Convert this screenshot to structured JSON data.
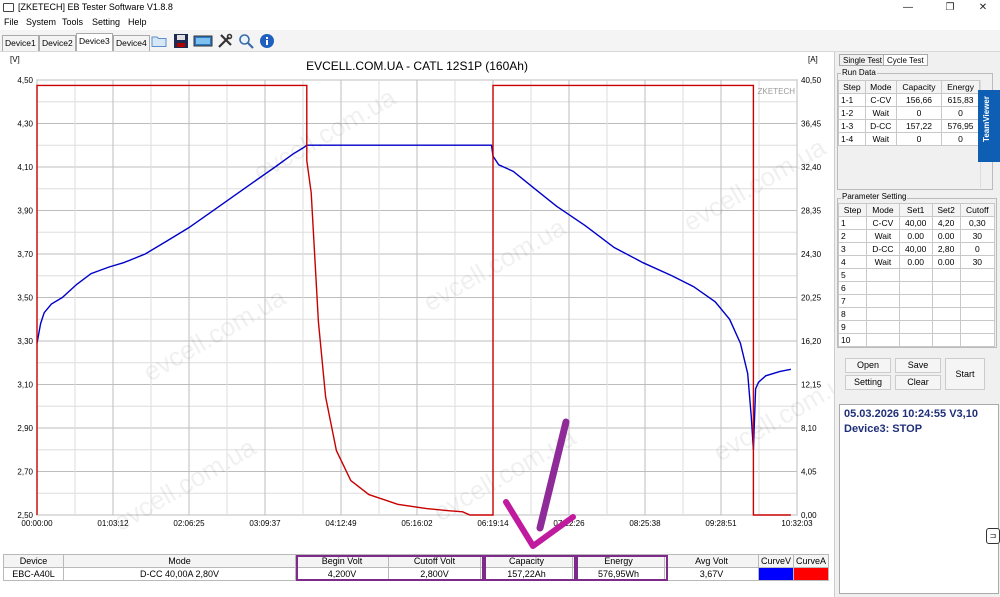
{
  "window": {
    "title": "[ZKETECH] EB Tester Software V1.8.8",
    "minimize_glyph": "—",
    "maximize_glyph": "❐",
    "close_glyph": "✕"
  },
  "menu": [
    "File",
    "System",
    "Tools",
    "Setting",
    "Help"
  ],
  "devices": [
    "Device1",
    "Device2",
    "Device3",
    "Device4"
  ],
  "active_device": "Device3",
  "toolbar_icons": [
    "folder-icon",
    "save-icon",
    "monitor-icon",
    "tools-icon",
    "search-icon",
    "info-icon"
  ],
  "chart_data": {
    "type": "line",
    "title": "EVCELL.COM.UA - CATL 12S1P (160Ah)",
    "y_left_unit": "[V]",
    "y_right_unit": "[A]",
    "y_left_ticks": [
      "4,50",
      "4,30",
      "4,10",
      "3,90",
      "3,70",
      "3,50",
      "3,30",
      "3,10",
      "2,90",
      "2,70",
      "2,50"
    ],
    "y_right_ticks": [
      "40,50",
      "36,45",
      "32,40",
      "28,35",
      "24,30",
      "20,25",
      "16,20",
      "12,15",
      "8,10",
      "4,05",
      "0,00"
    ],
    "x_ticks": [
      "00:00:00",
      "01:03:12",
      "02:06:25",
      "03:09:37",
      "04:12:49",
      "05:16:02",
      "06:19:14",
      "07:22:26",
      "08:25:38",
      "09:28:51",
      "10:32:03"
    ],
    "ylim_left": [
      2.5,
      4.5
    ],
    "ylim_right": [
      0,
      40.5
    ],
    "xlim_hours": [
      0,
      10.534
    ],
    "grid": true,
    "watermark_text": "ZKETECH",
    "watermark_site": "evcell.com.ua",
    "series": [
      {
        "name": "CurveV",
        "axis": "left",
        "color": "#0000c8",
        "points": [
          [
            0.0,
            3.29
          ],
          [
            0.05,
            3.38
          ],
          [
            0.1,
            3.43
          ],
          [
            0.2,
            3.47
          ],
          [
            0.35,
            3.5
          ],
          [
            0.55,
            3.56
          ],
          [
            0.75,
            3.61
          ],
          [
            1.0,
            3.64
          ],
          [
            1.2,
            3.66
          ],
          [
            1.5,
            3.7
          ],
          [
            1.8,
            3.76
          ],
          [
            2.1,
            3.82
          ],
          [
            2.4,
            3.89
          ],
          [
            2.7,
            3.96
          ],
          [
            3.0,
            4.03
          ],
          [
            3.3,
            4.1
          ],
          [
            3.55,
            4.16
          ],
          [
            3.7,
            4.19
          ],
          [
            3.74,
            4.2
          ],
          [
            4.5,
            4.2
          ],
          [
            5.5,
            4.2
          ],
          [
            6.3,
            4.2
          ],
          [
            6.32,
            4.15
          ],
          [
            6.4,
            4.11
          ],
          [
            6.6,
            4.08
          ],
          [
            6.9,
            4.0
          ],
          [
            7.2,
            3.92
          ],
          [
            7.6,
            3.83
          ],
          [
            8.0,
            3.73
          ],
          [
            8.4,
            3.66
          ],
          [
            8.8,
            3.6
          ],
          [
            9.1,
            3.55
          ],
          [
            9.4,
            3.48
          ],
          [
            9.6,
            3.4
          ],
          [
            9.75,
            3.29
          ],
          [
            9.85,
            3.15
          ],
          [
            9.9,
            2.95
          ],
          [
            9.93,
            2.8
          ],
          [
            9.96,
            3.08
          ],
          [
            10.0,
            3.11
          ],
          [
            10.1,
            3.14
          ],
          [
            10.3,
            3.16
          ],
          [
            10.45,
            3.17
          ]
        ]
      },
      {
        "name": "CurveA",
        "axis": "right",
        "color": "#c80000",
        "points": [
          [
            0.0,
            0.0
          ],
          [
            0.0,
            40.0
          ],
          [
            3.74,
            40.0
          ],
          [
            3.74,
            33.0
          ],
          [
            3.8,
            30.0
          ],
          [
            3.85,
            24.0
          ],
          [
            3.9,
            18.0
          ],
          [
            4.0,
            11.0
          ],
          [
            4.15,
            6.0
          ],
          [
            4.35,
            3.2
          ],
          [
            4.6,
            1.9
          ],
          [
            5.0,
            1.0
          ],
          [
            5.4,
            0.6
          ],
          [
            5.7,
            0.4
          ],
          [
            5.9,
            0.3
          ],
          [
            6.0,
            0.0
          ],
          [
            6.32,
            0.0
          ],
          [
            6.32,
            40.0
          ],
          [
            9.93,
            40.0
          ],
          [
            9.93,
            0.0
          ],
          [
            10.45,
            0.0
          ]
        ]
      }
    ]
  },
  "right_panel": {
    "tabs": [
      "Single Test",
      "Cycle Test"
    ],
    "active_tab": "Cycle Test",
    "run_data": {
      "label": "Run Data",
      "headers": [
        "Step",
        "Mode",
        "Capacity",
        "Energy"
      ],
      "rows": [
        [
          "1-1",
          "C-CV",
          "156,66",
          "615,83"
        ],
        [
          "1-2",
          "Wait",
          "0",
          "0"
        ],
        [
          "1-3",
          "D-CC",
          "157,22",
          "576,95"
        ],
        [
          "1-4",
          "Wait",
          "0",
          "0"
        ]
      ]
    },
    "param": {
      "label": "Parameter Setting",
      "headers": [
        "Step",
        "Mode",
        "Set1",
        "Set2",
        "Cutoff"
      ],
      "rows": [
        [
          "1",
          "C-CV",
          "40,00",
          "4,20",
          "0,30"
        ],
        [
          "2",
          "Wait",
          "0.00",
          "0.00",
          "30"
        ],
        [
          "3",
          "D-CC",
          "40,00",
          "2,80",
          "0"
        ],
        [
          "4",
          "Wait",
          "0.00",
          "0.00",
          "30"
        ],
        [
          "5",
          "",
          "",
          "",
          ""
        ],
        [
          "6",
          "",
          "",
          "",
          ""
        ],
        [
          "7",
          "",
          "",
          "",
          ""
        ],
        [
          "8",
          "",
          "",
          "",
          ""
        ],
        [
          "9",
          "",
          "",
          "",
          ""
        ],
        [
          "10",
          "",
          "",
          "",
          ""
        ]
      ]
    },
    "buttons": {
      "open": "Open",
      "save": "Save",
      "setting": "Setting",
      "clear": "Clear",
      "start": "Start"
    },
    "status_line1": "05.03.2026 10:24:55  V3,10",
    "status_line2": "Device3: STOP",
    "teamviewer": "TeamViewer"
  },
  "bottom": {
    "headers": [
      "Device",
      "Mode",
      "Begin Volt",
      "Cutoff Volt",
      "Capacity",
      "Energy",
      "Avg Volt",
      "CurveV",
      "CurveA"
    ],
    "values": [
      "EBC-A40L",
      "D-CC  40,00A  2,80V",
      "4,200V",
      "2,800V",
      "157,22Ah",
      "576,95Wh",
      "3,67V"
    ],
    "curve_colors": {
      "v": "#0000ff",
      "a": "#ff0000"
    }
  },
  "annotation": {
    "arrow_color": "#8e2b98"
  }
}
